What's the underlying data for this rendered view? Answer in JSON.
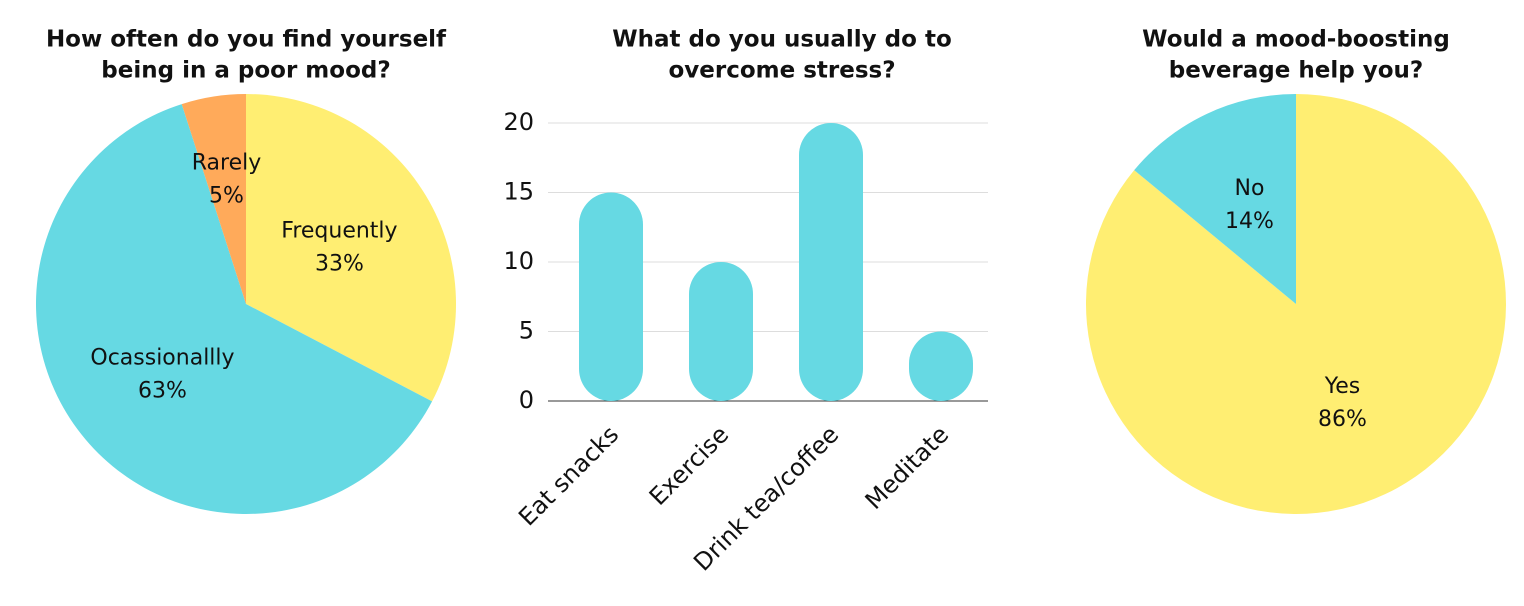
{
  "chart_data": [
    {
      "type": "pie",
      "title": [
        "How often do you find yourself",
        "being in a poor mood?"
      ],
      "categories": [
        "Frequently",
        "Ocassionallly",
        "Rarely"
      ],
      "values": [
        33,
        63,
        5
      ],
      "value_labels": [
        "33%",
        "63%",
        "5%"
      ],
      "colors": [
        "#ffee72",
        "#66d9e3",
        "#ffaa5a"
      ]
    },
    {
      "type": "bar",
      "title": [
        "What do you usually do to",
        "overcome stress?"
      ],
      "categories": [
        "Eat snacks",
        "Exercise",
        "Drink tea/coffee",
        "Meditate"
      ],
      "values": [
        15,
        10,
        20,
        5
      ],
      "color": "#66d9e3",
      "ylim": [
        0,
        20
      ],
      "yticks": [
        0,
        5,
        10,
        15,
        20
      ],
      "grid": true
    },
    {
      "type": "pie",
      "title": [
        "Would a mood-boosting",
        "beverage help you?"
      ],
      "categories": [
        "Yes",
        "No"
      ],
      "values": [
        86,
        14
      ],
      "value_labels": [
        "86%",
        "14%"
      ],
      "colors": [
        "#ffee72",
        "#66d9e3"
      ]
    }
  ]
}
